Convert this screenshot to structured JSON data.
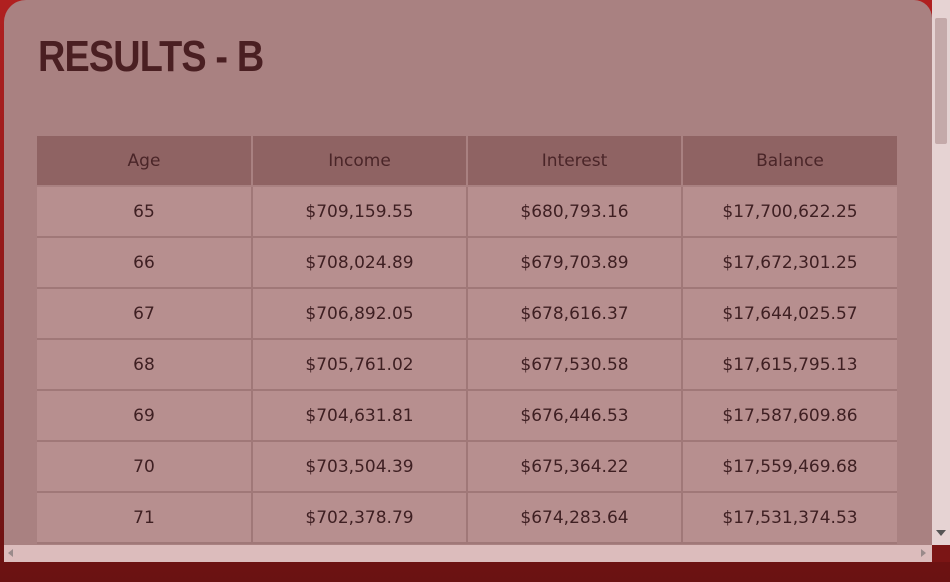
{
  "page": {
    "title": "RESULTS - B"
  },
  "table": {
    "headers": [
      "Age",
      "Income",
      "Interest",
      "Balance"
    ],
    "rows": [
      [
        "65",
        "$709,159.55",
        "$680,793.16",
        "$17,700,622.25"
      ],
      [
        "66",
        "$708,024.89",
        "$679,703.89",
        "$17,672,301.25"
      ],
      [
        "67",
        "$706,892.05",
        "$678,616.37",
        "$17,644,025.57"
      ],
      [
        "68",
        "$705,761.02",
        "$677,530.58",
        "$17,615,795.13"
      ],
      [
        "69",
        "$704,631.81",
        "$676,446.53",
        "$17,587,609.86"
      ],
      [
        "70",
        "$703,504.39",
        "$675,364.22",
        "$17,559,469.68"
      ],
      [
        "71",
        "$702,378.79",
        "$674,283.64",
        "$17,531,374.53"
      ]
    ]
  },
  "colors": {
    "background": "#8e1c1c",
    "panel": "#a98181",
    "header_cell": "#8f6363",
    "body_cell": "#b78f8f",
    "title_text": "#4a1f22"
  }
}
